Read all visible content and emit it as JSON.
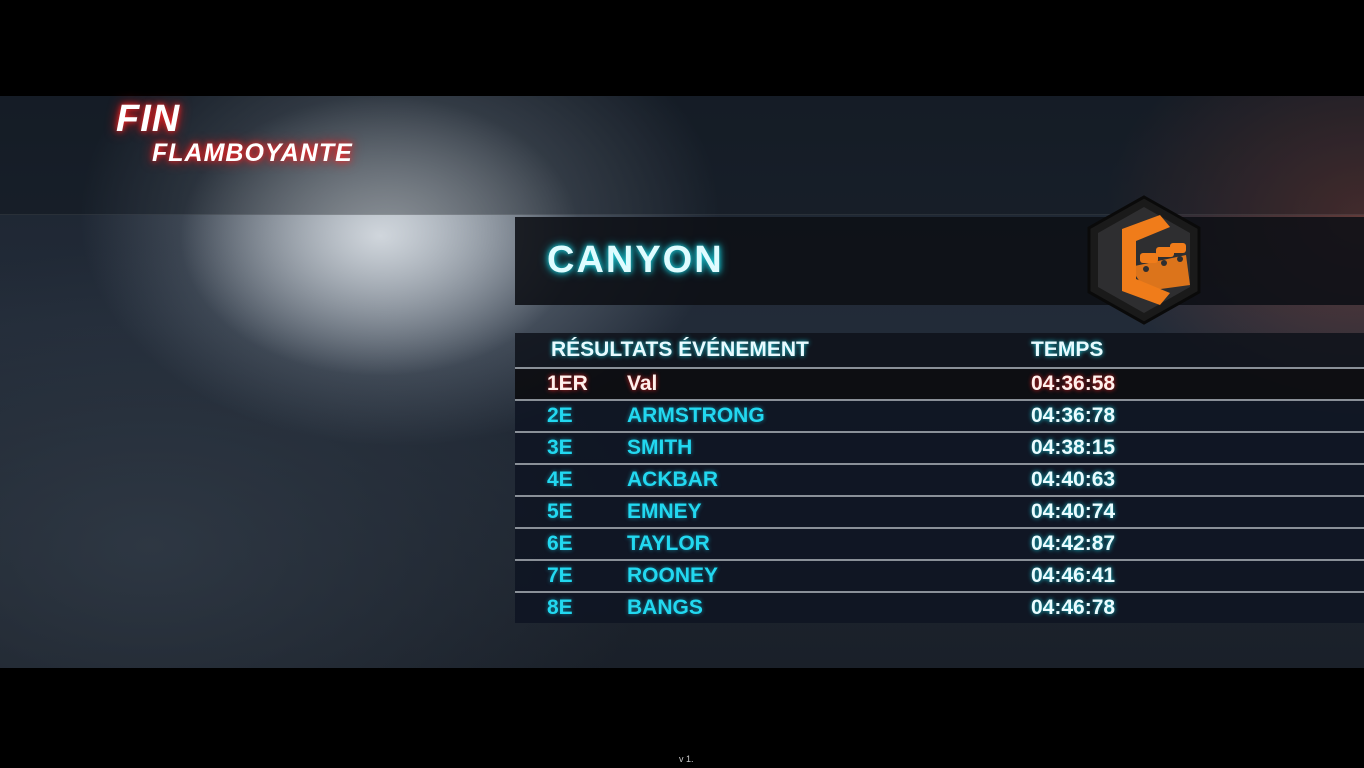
{
  "header": {
    "title_line1": "FIN",
    "title_line2": "FLAMBOYANTE",
    "glow_color": "#e01010"
  },
  "track": {
    "name": "CANYON",
    "badge_icon": "canyon-cars-hexagon-icon",
    "badge_color": "#f07c1a"
  },
  "results": {
    "columns": {
      "event": "RÉSULTATS ÉVÉNEMENT",
      "time": "TEMPS"
    },
    "rows": [
      {
        "position": "1ER",
        "name": "Val",
        "time": "04:36:58",
        "highlight": true
      },
      {
        "position": "2E",
        "name": "ARMSTRONG",
        "time": "04:36:78"
      },
      {
        "position": "3E",
        "name": "SMITH",
        "time": "04:38:15"
      },
      {
        "position": "4E",
        "name": "ACKBAR",
        "time": "04:40:63"
      },
      {
        "position": "5E",
        "name": "EMNEY",
        "time": "04:40:74"
      },
      {
        "position": "6E",
        "name": "TAYLOR",
        "time": "04:42:87"
      },
      {
        "position": "7E",
        "name": "ROONEY",
        "time": "04:46:41"
      },
      {
        "position": "8E",
        "name": "BANGS",
        "time": "04:46:78"
      }
    ]
  },
  "footer": {
    "version": "v 1."
  }
}
